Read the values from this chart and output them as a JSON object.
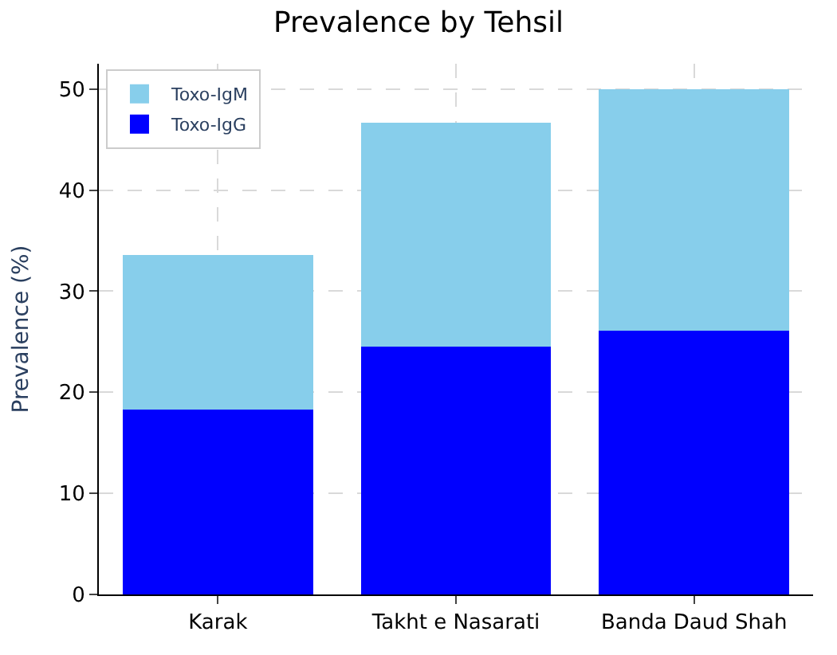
{
  "chart_data": {
    "type": "bar",
    "title": "Prevalence by Tehsil",
    "ylabel": "Prevalence (%)",
    "stacked": true,
    "categories": [
      "Karak",
      "Takht e Nasarati",
      "Banda Daud Shah"
    ],
    "series": [
      {
        "name": "Toxo-IgG",
        "color": "#0000ff",
        "values": [
          18.3,
          24.5,
          26.1
        ]
      },
      {
        "name": "Toxo-IgM",
        "color": "#87ceeb",
        "values": [
          15.3,
          22.2,
          23.9
        ]
      }
    ],
    "ylim": [
      0,
      52.5
    ],
    "yticks": [
      0,
      10,
      20,
      30,
      40,
      50
    ],
    "grid": true,
    "legend": "top left"
  }
}
